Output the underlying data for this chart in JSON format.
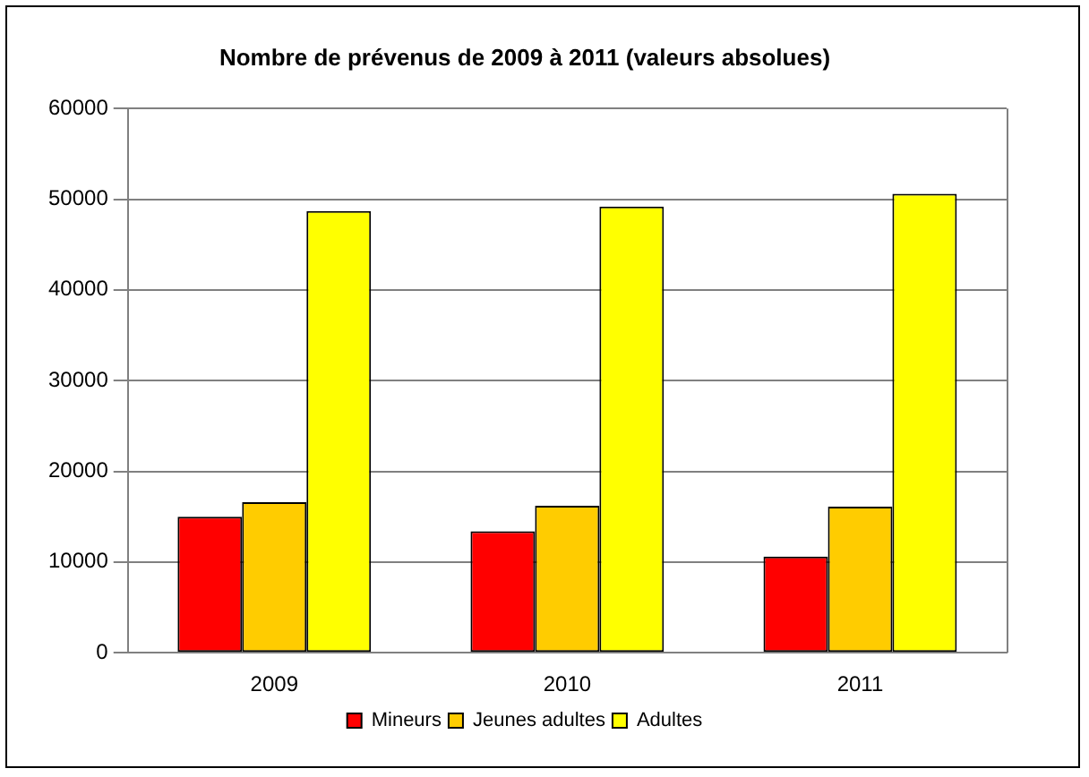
{
  "chart_data": {
    "type": "bar",
    "title": "Nombre de prévenus de 2009 à 2011 (valeurs absolues)",
    "categories": [
      "2009",
      "2010",
      "2011"
    ],
    "series": [
      {
        "name": "Mineurs",
        "color": "#ff0000",
        "values": [
          15000,
          13400,
          10600
        ]
      },
      {
        "name": "Jeunes adultes",
        "color": "#ffcc00",
        "values": [
          16600,
          16200,
          16100
        ]
      },
      {
        "name": "Adultes",
        "color": "#ffff00",
        "values": [
          48700,
          49200,
          50600
        ]
      }
    ],
    "ylim": [
      0,
      60000
    ],
    "yticks": [
      0,
      10000,
      20000,
      30000,
      40000,
      50000,
      60000
    ],
    "grid": "y",
    "legend": "bottom"
  }
}
